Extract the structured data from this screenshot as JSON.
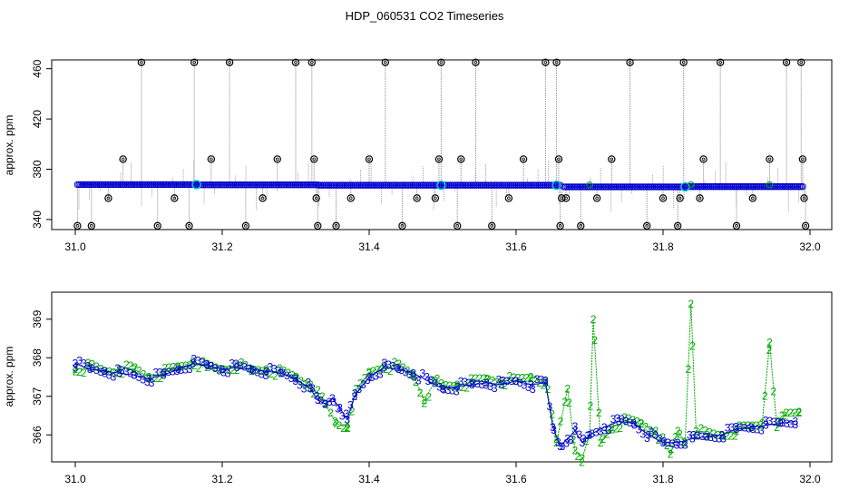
{
  "title": "HDP_060531  CO2 Timeseries",
  "chart_data": [
    {
      "type": "scatter",
      "title": "",
      "ylabel": "approx. ppm",
      "xlabel": "",
      "xlim": [
        31.0,
        32.0
      ],
      "ylim": [
        332,
        467
      ],
      "x_ticks": [
        31.0,
        31.2,
        31.4,
        31.6,
        31.8,
        32.0
      ],
      "x_tick_labels": [
        "31.0",
        "31.2",
        "31.4",
        "31.6",
        "31.8",
        "32.0"
      ],
      "y_ticks": [
        340,
        380,
        420,
        460
      ],
      "y_tick_labels": [
        "340",
        "380",
        "420",
        "460"
      ],
      "colors": {
        "baseline": "#0000cc",
        "spikes": "#888888",
        "outliers": "#000000",
        "highlight": "#00cccc",
        "secondary": "#00aa00"
      },
      "series": [
        {
          "name": "",
          "segments": [
            {
              "x_start": 31.003,
              "x_end": 31.165,
              "y": 367.8
            },
            {
              "x_start": 31.165,
              "x_end": 31.33,
              "y": 367.6
            },
            {
              "x_start": 31.332,
              "x_end": 31.66,
              "y": 367.3
            },
            {
              "x_start": 31.665,
              "x_end": 31.83,
              "y": 366.0
            },
            {
              "x_start": 31.832,
              "x_end": 31.99,
              "y": 366.2
            }
          ]
        },
        {
          "name": "",
          "points": [
            [
              31.003,
              335
            ],
            [
              31.022,
              335
            ],
            [
              31.045,
              357
            ],
            [
              31.065,
              388
            ],
            [
              31.09,
              465
            ],
            [
              31.112,
              335
            ],
            [
              31.135,
              357
            ],
            [
              31.155,
              335
            ],
            [
              31.162,
              465
            ],
            [
              31.185,
              388
            ],
            [
              31.21,
              465
            ],
            [
              31.232,
              335
            ],
            [
              31.255,
              357
            ],
            [
              31.275,
              388
            ],
            [
              31.3,
              465
            ],
            [
              31.322,
              465
            ],
            [
              31.325,
              388
            ],
            [
              31.328,
              357
            ],
            [
              31.33,
              335
            ],
            [
              31.355,
              335
            ],
            [
              31.375,
              357
            ],
            [
              31.4,
              388
            ],
            [
              31.422,
              465
            ],
            [
              31.445,
              335
            ],
            [
              31.465,
              357
            ],
            [
              31.49,
              357
            ],
            [
              31.495,
              388
            ],
            [
              31.498,
              465
            ],
            [
              31.52,
              335
            ],
            [
              31.525,
              388
            ],
            [
              31.545,
              465
            ],
            [
              31.567,
              335
            ],
            [
              31.59,
              357
            ],
            [
              31.61,
              388
            ],
            [
              31.64,
              465
            ],
            [
              31.655,
              465
            ],
            [
              31.658,
              388
            ],
            [
              31.66,
              335
            ],
            [
              31.662,
              357
            ],
            [
              31.668,
              357
            ],
            [
              31.688,
              335
            ],
            [
              31.71,
              357
            ],
            [
              31.73,
              388
            ],
            [
              31.755,
              465
            ],
            [
              31.778,
              335
            ],
            [
              31.8,
              357
            ],
            [
              31.82,
              335
            ],
            [
              31.823,
              357
            ],
            [
              31.828,
              465
            ],
            [
              31.85,
              357
            ],
            [
              31.855,
              388
            ],
            [
              31.878,
              465
            ],
            [
              31.9,
              335
            ],
            [
              31.922,
              357
            ],
            [
              31.945,
              388
            ],
            [
              31.968,
              465
            ],
            [
              31.988,
              465
            ],
            [
              31.99,
              388
            ],
            [
              31.992,
              357
            ],
            [
              31.994,
              335
            ]
          ]
        }
      ]
    },
    {
      "type": "line",
      "title": "",
      "ylabel": "approx. ppm",
      "xlabel": "",
      "xlim": [
        31.0,
        32.0
      ],
      "ylim": [
        365.3,
        369.7
      ],
      "x_ticks": [
        31.0,
        31.2,
        31.4,
        31.6,
        31.8,
        32.0
      ],
      "x_tick_labels": [
        "31.0",
        "31.2",
        "31.4",
        "31.6",
        "31.8",
        "32.0"
      ],
      "y_ticks": [
        366,
        367,
        368,
        369
      ],
      "y_tick_labels": [
        "366",
        "367",
        "368",
        "369"
      ],
      "colors": {
        "series3": "#0000cc",
        "series2": "#00aa00"
      },
      "series": [
        {
          "name": "",
          "marker": "3",
          "x": [
            31.0,
            31.02,
            31.04,
            31.06,
            31.08,
            31.1,
            31.12,
            31.14,
            31.16,
            31.18,
            31.2,
            31.22,
            31.24,
            31.26,
            31.28,
            31.3,
            31.32,
            31.33,
            31.34,
            31.35,
            31.36,
            31.37,
            31.38,
            31.4,
            31.42,
            31.44,
            31.46,
            31.48,
            31.5,
            31.52,
            31.54,
            31.56,
            31.58,
            31.6,
            31.62,
            31.64,
            31.65,
            31.66,
            31.67,
            31.68,
            31.69,
            31.7,
            31.72,
            31.74,
            31.76,
            31.78,
            31.8,
            31.82,
            31.84,
            31.86,
            31.88,
            31.9,
            31.92,
            31.94,
            31.96,
            31.98
          ],
          "values": [
            367.85,
            367.7,
            367.65,
            367.6,
            367.55,
            367.45,
            367.55,
            367.7,
            367.85,
            367.8,
            367.7,
            367.75,
            367.7,
            367.65,
            367.6,
            367.45,
            367.2,
            366.9,
            366.8,
            366.95,
            366.7,
            366.4,
            367.0,
            367.5,
            367.75,
            367.7,
            367.6,
            367.4,
            367.2,
            367.25,
            367.3,
            367.35,
            367.3,
            367.4,
            367.3,
            367.35,
            366.2,
            365.7,
            365.9,
            366.1,
            365.8,
            366.0,
            366.2,
            366.35,
            366.3,
            366.0,
            365.8,
            365.8,
            365.9,
            365.95,
            366.0,
            366.15,
            366.2,
            366.25,
            366.3,
            366.35
          ]
        },
        {
          "name": "",
          "marker": "2",
          "x": [
            31.0,
            31.02,
            31.04,
            31.06,
            31.08,
            31.1,
            31.12,
            31.14,
            31.16,
            31.18,
            31.2,
            31.22,
            31.24,
            31.26,
            31.28,
            31.3,
            31.32,
            31.34,
            31.355,
            31.37,
            31.38,
            31.4,
            31.42,
            31.44,
            31.46,
            31.475,
            31.49,
            31.5,
            31.52,
            31.54,
            31.56,
            31.58,
            31.6,
            31.62,
            31.64,
            31.655,
            31.67,
            31.68,
            31.69,
            31.7,
            31.705,
            31.715,
            31.73,
            31.75,
            31.77,
            31.79,
            31.81,
            31.82,
            31.83,
            31.838,
            31.845,
            31.86,
            31.88,
            31.9,
            31.92,
            31.935,
            31.945,
            31.955,
            31.965,
            31.985
          ],
          "values": [
            367.7,
            367.75,
            367.65,
            367.7,
            367.7,
            367.5,
            367.6,
            367.75,
            367.9,
            367.75,
            367.7,
            367.8,
            367.65,
            367.7,
            367.6,
            367.5,
            367.3,
            366.8,
            366.3,
            366.2,
            367.0,
            367.6,
            367.8,
            367.75,
            367.55,
            366.9,
            367.4,
            367.25,
            367.3,
            367.35,
            367.45,
            367.4,
            367.4,
            367.5,
            367.4,
            365.8,
            367.2,
            365.6,
            365.4,
            366.0,
            369.0,
            365.8,
            366.2,
            366.35,
            366.3,
            366.1,
            365.5,
            366.1,
            365.8,
            369.4,
            366.1,
            366.0,
            366.0,
            366.1,
            366.2,
            366.3,
            368.4,
            366.2,
            366.5,
            366.6
          ]
        }
      ]
    }
  ]
}
